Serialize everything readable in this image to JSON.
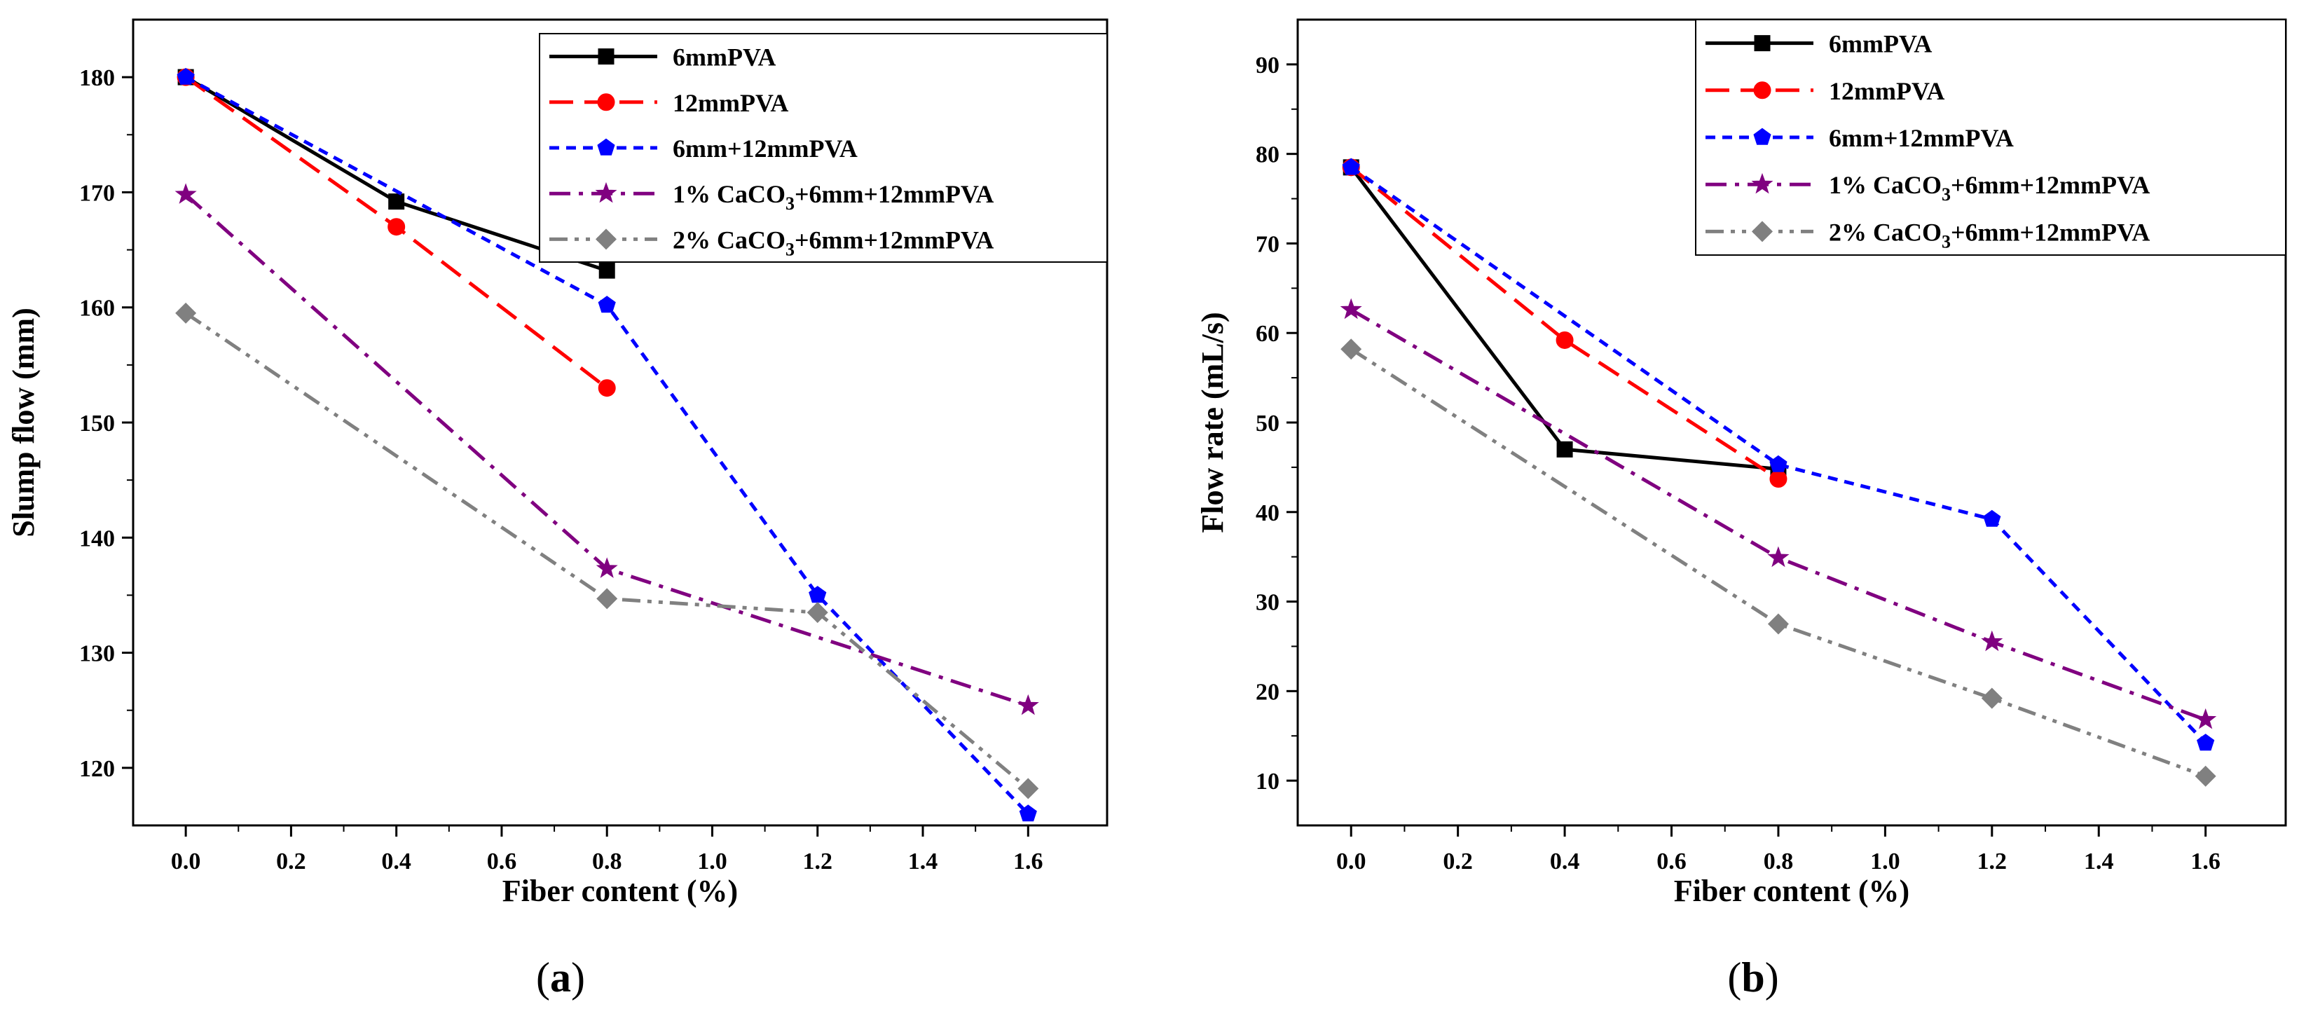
{
  "chart_data": [
    {
      "type": "line",
      "panel": "a",
      "caption": "(a)",
      "caption_letter": "a",
      "xlabel": "Fiber content (%)",
      "ylabel": "Slump flow (mm)",
      "xlim": [
        -0.1,
        1.75
      ],
      "ylim": [
        115,
        185
      ],
      "xticks": [
        0.0,
        0.2,
        0.4,
        0.6,
        0.8,
        1.0,
        1.2,
        1.4,
        1.6
      ],
      "xticklabels": [
        "0.0",
        "0.2",
        "0.4",
        "0.6",
        "0.8",
        "1.0",
        "1.2",
        "1.4",
        "1.6"
      ],
      "yticks": [
        120,
        130,
        140,
        150,
        160,
        170,
        180
      ],
      "yticklabels": [
        "120",
        "130",
        "140",
        "150",
        "160",
        "170",
        "180"
      ],
      "legend_position": "top-right",
      "series": [
        {
          "name": "6mmPVA",
          "label_main": "6mmPVA",
          "label_sub": "",
          "label_tail": "",
          "color": "#000000",
          "dash": "solid",
          "marker": "square",
          "x": [
            0.0,
            0.4,
            0.8
          ],
          "y": [
            180,
            169.2,
            163.2
          ]
        },
        {
          "name": "12mmPVA",
          "label_main": "12mmPVA",
          "label_sub": "",
          "label_tail": "",
          "color": "#ff0000",
          "dash": "dash",
          "marker": "circle",
          "x": [
            0.0,
            0.4,
            0.8
          ],
          "y": [
            180,
            167,
            153
          ]
        },
        {
          "name": "6mm+12mmPVA",
          "label_main": "6mm+12mmPVA",
          "label_sub": "",
          "label_tail": "",
          "color": "#0000ff",
          "dash": "short-dash",
          "marker": "pentagon",
          "x": [
            0.0,
            0.8,
            1.2,
            1.6
          ],
          "y": [
            180,
            160.2,
            135,
            116
          ]
        },
        {
          "name": "1% CaCO3+6mm+12mmPVA",
          "label_main": "1% CaCO",
          "label_sub": "3",
          "label_tail": "+6mm+12mmPVA",
          "color": "#800080",
          "dash": "dash-dot",
          "marker": "star",
          "x": [
            0.0,
            0.8,
            1.6
          ],
          "y": [
            169.8,
            137.3,
            125.4
          ]
        },
        {
          "name": "2% CaCO3+6mm+12mmPVA",
          "label_main": "2% CaCO",
          "label_sub": "3",
          "label_tail": "+6mm+12mmPVA",
          "color": "#808080",
          "dash": "dash-dot-dot",
          "marker": "diamond",
          "x": [
            0.0,
            0.8,
            1.2,
            1.6
          ],
          "y": [
            159.5,
            134.7,
            133.5,
            118.2
          ]
        }
      ]
    },
    {
      "type": "line",
      "panel": "b",
      "caption": "(b)",
      "caption_letter": "b",
      "xlabel": "Fiber content (%)",
      "ylabel": "Flow rate (mL/s)",
      "xlim": [
        -0.1,
        1.75
      ],
      "ylim": [
        5,
        95
      ],
      "xticks": [
        0.0,
        0.2,
        0.4,
        0.6,
        0.8,
        1.0,
        1.2,
        1.4,
        1.6
      ],
      "xticklabels": [
        "0.0",
        "0.2",
        "0.4",
        "0.6",
        "0.8",
        "1.0",
        "1.2",
        "1.4",
        "1.6"
      ],
      "yticks": [
        10,
        20,
        30,
        40,
        50,
        60,
        70,
        80,
        90
      ],
      "yticklabels": [
        "10",
        "20",
        "30",
        "40",
        "50",
        "60",
        "70",
        "80",
        "90"
      ],
      "legend_position": "top-right",
      "series": [
        {
          "name": "6mmPVA",
          "label_main": "6mmPVA",
          "label_sub": "",
          "label_tail": "",
          "color": "#000000",
          "dash": "solid",
          "marker": "square",
          "x": [
            0.0,
            0.4,
            0.8
          ],
          "y": [
            78.5,
            47,
            44.8
          ]
        },
        {
          "name": "12mmPVA",
          "label_main": "12mmPVA",
          "label_sub": "",
          "label_tail": "",
          "color": "#ff0000",
          "dash": "dash",
          "marker": "circle",
          "x": [
            0.0,
            0.4,
            0.8
          ],
          "y": [
            78.5,
            59.2,
            43.7
          ]
        },
        {
          "name": "6mm+12mmPVA",
          "label_main": "6mm+12mmPVA",
          "label_sub": "",
          "label_tail": "",
          "color": "#0000ff",
          "dash": "short-dash",
          "marker": "pentagon",
          "x": [
            0.0,
            0.8,
            1.2,
            1.6
          ],
          "y": [
            78.5,
            45.3,
            39.2,
            14.2
          ]
        },
        {
          "name": "1% CaCO3+6mm+12mmPVA",
          "label_main": "1% CaCO",
          "label_sub": "3",
          "label_tail": "+6mm+12mmPVA",
          "color": "#800080",
          "dash": "dash-dot",
          "marker": "star",
          "x": [
            0.0,
            0.8,
            1.2,
            1.6
          ],
          "y": [
            62.6,
            34.9,
            25.5,
            16.8
          ]
        },
        {
          "name": "2% CaCO3+6mm+12mmPVA",
          "label_main": "2% CaCO",
          "label_sub": "3",
          "label_tail": "+6mm+12mmPVA",
          "color": "#808080",
          "dash": "dash-dot-dot",
          "marker": "diamond",
          "x": [
            0.0,
            0.8,
            1.2,
            1.6
          ],
          "y": [
            58.2,
            27.5,
            19.2,
            10.5
          ]
        }
      ]
    }
  ]
}
